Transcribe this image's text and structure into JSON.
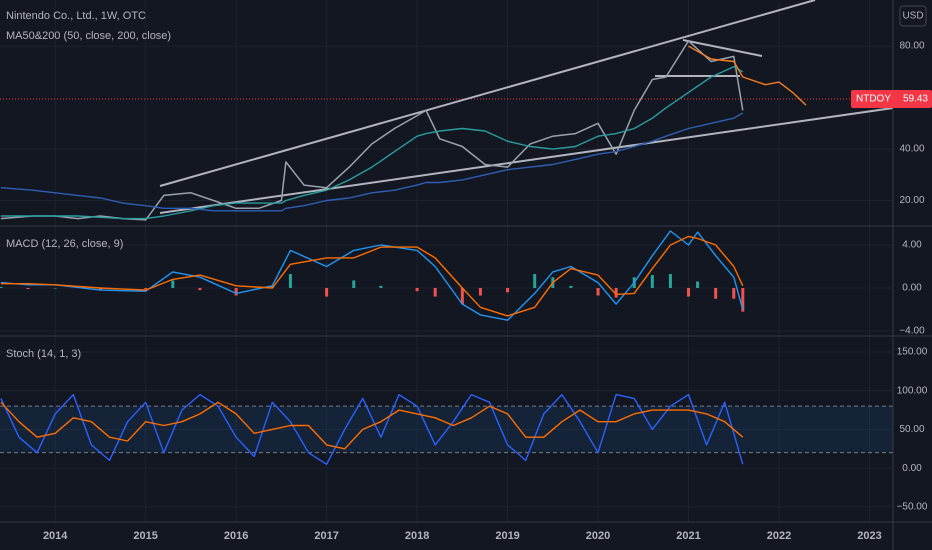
{
  "chart_data": [
    {
      "type": "line",
      "title": "Nintendo Co., Ltd., 1W, OTC",
      "subtitle": "MA50&200 (50, close, 200, close)",
      "currency": "USD",
      "x": [
        2013.4,
        2013.75,
        2014,
        2014.25,
        2014.5,
        2014.75,
        2015,
        2015.2,
        2015.5,
        2015.75,
        2016,
        2016.25,
        2016.5,
        2016.55,
        2016.75,
        2017,
        2017.25,
        2017.5,
        2017.75,
        2018,
        2018.1,
        2018.25,
        2018.5,
        2018.75,
        2019,
        2019.25,
        2019.5,
        2019.75,
        2020,
        2020.2,
        2020.4,
        2020.6,
        2020.75,
        2021,
        2021.25,
        2021.5,
        2021.6,
        2021.85,
        2022,
        2022.15,
        2022.3
      ],
      "series": [
        {
          "color": "#9aa3ad",
          "values": [
            13,
            14,
            14,
            13,
            14,
            13,
            12.5,
            22,
            23,
            20,
            17,
            17,
            20,
            35,
            26,
            25,
            33,
            42,
            48,
            53,
            55,
            44,
            41,
            34,
            33,
            42,
            45,
            46,
            50,
            38,
            55,
            67,
            68,
            82,
            74,
            76,
            55,
            null,
            null,
            null,
            null
          ]
        },
        {
          "color": "#2a9d9f",
          "values": [
            14,
            14,
            14,
            14,
            13.5,
            13,
            13,
            14,
            16,
            18,
            19,
            19,
            19,
            20,
            22,
            24,
            28,
            33,
            39,
            45,
            46,
            47,
            48,
            47,
            43,
            41,
            40,
            41,
            45,
            46,
            48,
            52,
            56,
            62,
            68,
            72,
            70,
            null,
            null,
            null,
            null
          ]
        },
        {
          "color": "#2f5fb3",
          "values": [
            25,
            24,
            23,
            22,
            21,
            19,
            18,
            17,
            17,
            16,
            16,
            16,
            16,
            17,
            18,
            20,
            21,
            23,
            24,
            26,
            27,
            27,
            28,
            30,
            32,
            33,
            34,
            36,
            38,
            39,
            41,
            43,
            45,
            48,
            50,
            52,
            54,
            null,
            null,
            null,
            null
          ]
        },
        {
          "color": "#f57c20",
          "values": [
            null,
            null,
            null,
            null,
            null,
            null,
            null,
            null,
            null,
            null,
            null,
            null,
            null,
            null,
            null,
            null,
            null,
            null,
            null,
            null,
            null,
            null,
            null,
            null,
            null,
            null,
            null,
            null,
            null,
            null,
            null,
            null,
            null,
            80,
            75,
            74,
            68,
            65,
            66,
            62,
            57
          ]
        }
      ],
      "price_label": {
        "name": "NTDOY",
        "value": 59.43,
        "color": "#f23645"
      },
      "ylim": [
        10.5,
        97.9
      ],
      "yticks": [
        {
          "value": 20,
          "label": "20.00"
        },
        {
          "value": 40,
          "label": "40.00"
        },
        {
          "value": 80,
          "label": "80.00"
        }
      ],
      "grid": true
    },
    {
      "type": "line",
      "title": "MACD (12, 26, close, 9)",
      "x": [
        2013.4,
        2013.7,
        2014,
        2014.5,
        2015,
        2015.3,
        2015.6,
        2016,
        2016.4,
        2016.6,
        2017,
        2017.3,
        2017.6,
        2018,
        2018.2,
        2018.5,
        2018.7,
        2019,
        2019.3,
        2019.5,
        2019.7,
        2020,
        2020.2,
        2020.4,
        2020.6,
        2020.8,
        2021,
        2021.1,
        2021.3,
        2021.5,
        2021.6
      ],
      "series": [
        {
          "style": "histogram",
          "color": "#26a69a",
          "negative_color": "#ef5350",
          "values": [
            0.1,
            -0.1,
            0,
            -0.2,
            -0.1,
            0.7,
            -0.2,
            -0.7,
            0.2,
            1.3,
            -0.8,
            0.7,
            0.2,
            -0.3,
            -0.8,
            -1.5,
            -0.7,
            -0.4,
            1.3,
            1.0,
            0.2,
            -0.7,
            -0.9,
            1.0,
            1.2,
            1.3,
            -0.8,
            0.6,
            -1.0,
            -1.0,
            -2.2
          ]
        },
        {
          "color": "#2196f3",
          "values": [
            0.5,
            0.3,
            0.3,
            -0.2,
            -0.3,
            1.5,
            1.0,
            -0.5,
            0.2,
            3.5,
            2.0,
            3.5,
            4.0,
            3.5,
            2.0,
            -1.5,
            -2.5,
            -3.0,
            -0.5,
            1.5,
            2.0,
            0.5,
            -1.5,
            0.5,
            3.0,
            5.3,
            4.0,
            5.2,
            3.0,
            1.0,
            -2.0
          ]
        },
        {
          "color": "#ff6d00",
          "values": [
            0.4,
            0.4,
            0.3,
            0,
            -0.2,
            0.8,
            1.2,
            0.2,
            0,
            2.2,
            2.8,
            2.8,
            3.8,
            3.8,
            2.8,
            0,
            -1.8,
            -2.6,
            -1.8,
            0.5,
            1.8,
            1.2,
            -0.6,
            -0.5,
            1.8,
            4.0,
            4.8,
            4.6,
            4.0,
            2.0,
            0.2
          ]
        }
      ],
      "ylim": [
        -4.28,
        5.58
      ],
      "yticks": [
        {
          "value": 4,
          "label": "4.00"
        },
        {
          "value": 0,
          "label": "0.00"
        },
        {
          "value": -4,
          "label": "−4.00"
        }
      ],
      "grid": true
    },
    {
      "type": "line",
      "title": "Stoch (14, 1, 3)",
      "x": [
        2013.4,
        2013.6,
        2013.8,
        2014.0,
        2014.2,
        2014.4,
        2014.6,
        2014.8,
        2015.0,
        2015.2,
        2015.4,
        2015.6,
        2015.8,
        2016.0,
        2016.2,
        2016.4,
        2016.6,
        2016.8,
        2017.0,
        2017.2,
        2017.4,
        2017.6,
        2017.8,
        2018.0,
        2018.2,
        2018.4,
        2018.6,
        2018.8,
        2019.0,
        2019.2,
        2019.4,
        2019.6,
        2019.8,
        2020.0,
        2020.2,
        2020.4,
        2020.6,
        2020.8,
        2021.0,
        2021.2,
        2021.4,
        2021.6
      ],
      "series": [
        {
          "color": "#2962ff",
          "values": [
            90,
            40,
            20,
            70,
            95,
            30,
            10,
            60,
            85,
            20,
            75,
            95,
            80,
            40,
            15,
            85,
            60,
            20,
            5,
            50,
            90,
            40,
            95,
            80,
            30,
            60,
            95,
            85,
            30,
            10,
            70,
            95,
            60,
            20,
            95,
            90,
            50,
            80,
            95,
            30,
            85,
            5
          ]
        },
        {
          "color": "#ff6d00",
          "values": [
            85,
            60,
            40,
            45,
            65,
            60,
            40,
            35,
            60,
            55,
            60,
            70,
            85,
            70,
            45,
            50,
            55,
            55,
            30,
            25,
            50,
            60,
            75,
            70,
            65,
            55,
            65,
            80,
            70,
            40,
            40,
            60,
            75,
            60,
            60,
            70,
            75,
            75,
            75,
            70,
            60,
            40
          ]
        }
      ],
      "bands": [
        80,
        20
      ],
      "ylim": [
        -69.5,
        168
      ],
      "yticks": [
        {
          "value": 150,
          "label": "150.00"
        },
        {
          "value": 100,
          "label": "100.00"
        },
        {
          "value": 50,
          "label": "50.00"
        },
        {
          "value": 0,
          "label": "0.00"
        },
        {
          "value": -50,
          "label": "−50.00"
        }
      ],
      "xlim": [
        2013.39,
        2023.26
      ],
      "xticks": [
        2014,
        2015,
        2016,
        2017,
        2018,
        2019,
        2020,
        2021,
        2022,
        2023
      ],
      "grid": true
    }
  ]
}
